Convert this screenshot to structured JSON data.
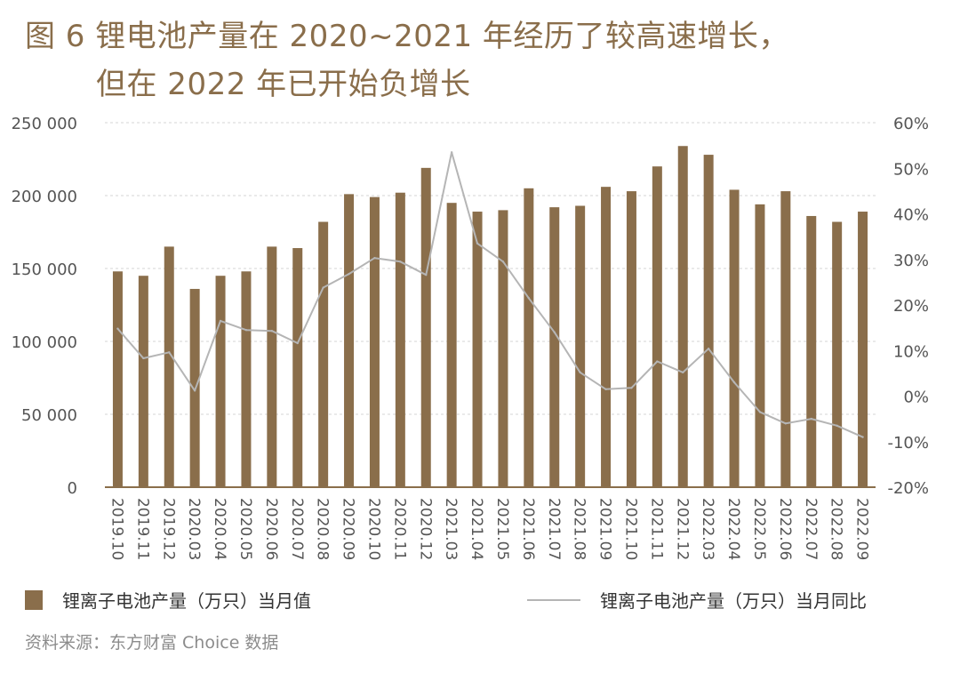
{
  "title": {
    "line1": "图 6  锂电池产量在 2020~2021 年经历了较高速增长，",
    "line2": "但在 2022 年已开始负增长"
  },
  "legend": {
    "bar_label": "锂离子电池产量（万只）当月值",
    "line_label": "锂离子电池产量（万只）当月同比"
  },
  "source": "资料来源：东方财富 Choice 数据",
  "colors": {
    "bar": "#8a6e4b",
    "line": "#b5b5b5",
    "title": "#8a6e4b"
  },
  "chart_data": {
    "type": "bar",
    "categories": [
      "2019.10",
      "2019.11",
      "2019.12",
      "2020.03",
      "2020.04",
      "2020.05",
      "2020.06",
      "2020.07",
      "2020.08",
      "2020.09",
      "2020.10",
      "2020.11",
      "2020.12",
      "2021.03",
      "2021.04",
      "2021.05",
      "2021.06",
      "2021.07",
      "2021.08",
      "2021.09",
      "2021.10",
      "2021.11",
      "2021.12",
      "2022.03",
      "2022.04",
      "2022.05",
      "2022.06",
      "2022.07",
      "2022.08",
      "2022.09"
    ],
    "series": [
      {
        "name": "锂离子电池产量（万只）当月值",
        "type": "bar",
        "axis": "left",
        "values": [
          148000,
          145000,
          165000,
          136000,
          145000,
          148000,
          165000,
          164000,
          182000,
          201000,
          199000,
          202000,
          219000,
          195000,
          189000,
          190000,
          205000,
          192000,
          193000,
          206000,
          203000,
          220000,
          234000,
          228000,
          204000,
          194000,
          203000,
          186000,
          182000,
          189000
        ]
      },
      {
        "name": "锂离子电池产量（万只）当月同比",
        "type": "line",
        "axis": "right",
        "values": [
          14.8,
          8.3,
          9.6,
          1.2,
          16.5,
          14.5,
          14.3,
          11.6,
          23.8,
          26.8,
          30.3,
          29.5,
          26.6,
          53.5,
          33.5,
          29.5,
          21.5,
          14.0,
          5.2,
          1.5,
          1.8,
          7.6,
          5.2,
          10.4,
          3.0,
          -3.5,
          -6.0,
          -5.0,
          -6.5,
          -9.0
        ]
      }
    ],
    "y_left": {
      "min": 0,
      "max": 250000,
      "ticks": [
        0,
        50000,
        100000,
        150000,
        200000,
        250000
      ],
      "tick_labels": [
        "0",
        "50 000",
        "100 000",
        "150 000",
        "200 000",
        "250 000"
      ]
    },
    "y_right": {
      "min": -20,
      "max": 60,
      "ticks": [
        -20,
        -10,
        0,
        10,
        20,
        30,
        40,
        50,
        60
      ],
      "tick_labels": [
        "-20%",
        "-10%",
        "0%",
        "10%",
        "20%",
        "30%",
        "40%",
        "50%",
        "60%"
      ]
    },
    "grid": true
  }
}
